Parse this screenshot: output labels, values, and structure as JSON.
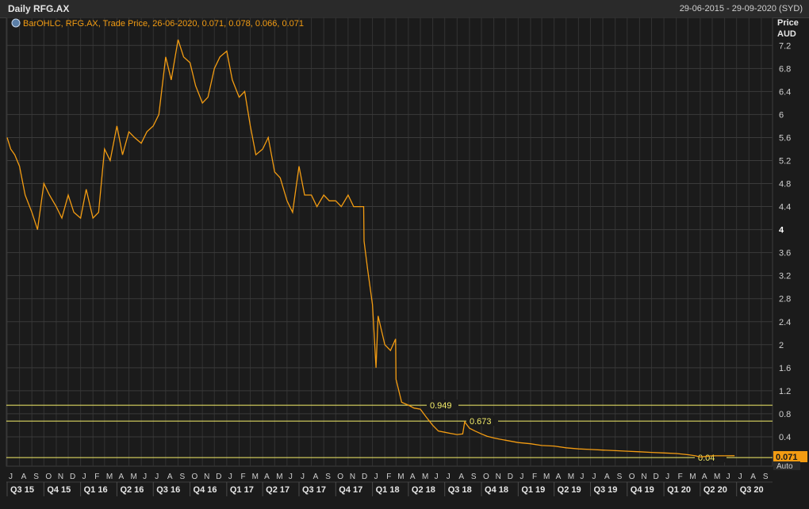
{
  "header": {
    "title": "Daily RFG.AX",
    "date_range": "29-06-2015 - 29-09-2020 (SYD)"
  },
  "legend": {
    "text": "BarOHLC, RFG.AX, Trade Price,  26-06-2020, 0.071, 0.078, 0.066, 0.071",
    "icon": "chart-settings-icon"
  },
  "axis": {
    "price_label": "Price",
    "currency_label": "AUD",
    "auto_label": "Auto",
    "last_price": "0.071"
  },
  "colors": {
    "series": "#f39c12",
    "level_lines": "#f5ee6a",
    "background": "#1b1b1b",
    "grid": "#3a3a3a",
    "last_price_badge": "#f39c12"
  },
  "chart_data": {
    "type": "line",
    "series": [
      {
        "name": "RFG.AX",
        "x_unit": "date",
        "y_unit": "AUD"
      }
    ],
    "x": [
      "2015-07-01",
      "2015-07-10",
      "2015-07-20",
      "2015-08-01",
      "2015-08-15",
      "2015-09-01",
      "2015-09-15",
      "2015-10-01",
      "2015-10-15",
      "2015-11-01",
      "2015-11-15",
      "2015-12-01",
      "2015-12-15",
      "2016-01-01",
      "2016-01-15",
      "2016-02-01",
      "2016-02-15",
      "2016-03-01",
      "2016-03-15",
      "2016-04-01",
      "2016-04-15",
      "2016-05-01",
      "2016-05-15",
      "2016-06-01",
      "2016-06-15",
      "2016-07-01",
      "2016-07-15",
      "2016-08-01",
      "2016-08-15",
      "2016-09-01",
      "2016-09-15",
      "2016-10-01",
      "2016-10-15",
      "2016-11-01",
      "2016-11-15",
      "2016-12-01",
      "2016-12-15",
      "2017-01-01",
      "2017-01-15",
      "2017-02-01",
      "2017-02-15",
      "2017-03-01",
      "2017-03-15",
      "2017-04-01",
      "2017-04-15",
      "2017-05-01",
      "2017-05-15",
      "2017-06-01",
      "2017-06-15",
      "2017-07-01",
      "2017-07-15",
      "2017-08-01",
      "2017-08-15",
      "2017-09-01",
      "2017-09-15",
      "2017-10-01",
      "2017-10-15",
      "2017-11-01",
      "2017-11-15",
      "2017-12-01",
      "2017-12-10",
      "2017-12-11",
      "2017-12-20",
      "2018-01-01",
      "2018-01-10",
      "2018-01-15",
      "2018-02-01",
      "2018-02-15",
      "2018-02-28",
      "2018-03-01",
      "2018-03-15",
      "2018-04-01",
      "2018-04-15",
      "2018-05-01",
      "2018-05-15",
      "2018-06-01",
      "2018-06-15",
      "2018-07-01",
      "2018-07-15",
      "2018-08-01",
      "2018-08-15",
      "2018-08-20",
      "2018-09-01",
      "2018-09-15",
      "2018-10-01",
      "2018-10-15",
      "2018-11-01",
      "2018-11-15",
      "2018-12-01",
      "2019-01-01",
      "2019-02-01",
      "2019-03-01",
      "2019-04-01",
      "2019-05-01",
      "2019-06-01",
      "2019-07-01",
      "2019-08-01",
      "2019-09-01",
      "2019-10-01",
      "2019-11-01",
      "2019-12-01",
      "2020-01-01",
      "2020-02-01",
      "2020-03-01",
      "2020-03-20",
      "2020-04-01",
      "2020-05-01",
      "2020-06-01",
      "2020-06-26"
    ],
    "values": [
      5.6,
      5.4,
      5.3,
      5.1,
      4.6,
      4.3,
      4.0,
      4.8,
      4.6,
      4.4,
      4.2,
      4.6,
      4.3,
      4.2,
      4.7,
      4.2,
      4.3,
      5.4,
      5.2,
      5.8,
      5.3,
      5.7,
      5.6,
      5.5,
      5.7,
      5.8,
      6.0,
      7.0,
      6.6,
      7.3,
      7.0,
      6.9,
      6.5,
      6.2,
      6.3,
      6.8,
      7.0,
      7.1,
      6.6,
      6.3,
      6.4,
      5.8,
      5.3,
      5.4,
      5.6,
      5.0,
      4.9,
      4.5,
      4.3,
      5.1,
      4.6,
      4.6,
      4.4,
      4.6,
      4.5,
      4.5,
      4.4,
      4.6,
      4.4,
      4.4,
      4.4,
      3.8,
      3.3,
      2.7,
      1.6,
      2.5,
      2.0,
      1.9,
      2.1,
      1.4,
      1.0,
      0.95,
      0.9,
      0.88,
      0.75,
      0.6,
      0.5,
      0.48,
      0.46,
      0.44,
      0.45,
      0.66,
      0.55,
      0.5,
      0.45,
      0.41,
      0.38,
      0.36,
      0.34,
      0.3,
      0.28,
      0.25,
      0.24,
      0.21,
      0.19,
      0.18,
      0.17,
      0.16,
      0.15,
      0.14,
      0.13,
      0.12,
      0.11,
      0.09,
      0.07,
      0.05,
      0.07,
      0.07,
      0.071
    ],
    "horizontal_levels": [
      {
        "label": "0.949",
        "value": 0.949
      },
      {
        "label": "0.673",
        "value": 0.673
      },
      {
        "label": "0.04",
        "value": 0.04
      }
    ],
    "y_ticks": [
      "7.2",
      "6.8",
      "6.4",
      "6",
      "5.6",
      "5.2",
      "4.8",
      "4.4",
      "4",
      "3.6",
      "3.2",
      "2.8",
      "2.4",
      "2",
      "1.6",
      "1.2",
      "0.8",
      "0.4"
    ],
    "y_tick_values": [
      7.2,
      6.8,
      6.4,
      6.0,
      5.6,
      5.2,
      4.8,
      4.4,
      4.0,
      3.6,
      3.2,
      2.8,
      2.4,
      2.0,
      1.6,
      1.2,
      0.8,
      0.4
    ],
    "ylim": [
      0,
      7.6
    ],
    "xlim": [
      "2015-06-29",
      "2020-09-29"
    ],
    "months": [
      "J",
      "A",
      "S",
      "O",
      "N",
      "D",
      "J",
      "F",
      "M",
      "A",
      "M",
      "J",
      "J",
      "A",
      "S",
      "O",
      "N",
      "D",
      "J",
      "F",
      "M",
      "A",
      "M",
      "J",
      "J",
      "A",
      "S",
      "O",
      "N",
      "D",
      "J",
      "F",
      "M",
      "A",
      "M",
      "J",
      "J",
      "A",
      "S",
      "O",
      "N",
      "D",
      "J",
      "F",
      "M",
      "A",
      "M",
      "J",
      "J",
      "A",
      "S",
      "O",
      "N",
      "D",
      "J",
      "F",
      "M",
      "A",
      "M",
      "J",
      "J",
      "A",
      "S"
    ],
    "quarters": [
      "Q3 15",
      "Q4 15",
      "Q1 16",
      "Q2 16",
      "Q3 16",
      "Q4 16",
      "Q1 17",
      "Q2 17",
      "Q3 17",
      "Q4 17",
      "Q1 18",
      "Q2 18",
      "Q3 18",
      "Q4 18",
      "Q1 19",
      "Q2 19",
      "Q3 19",
      "Q4 19",
      "Q1 20",
      "Q2 20",
      "Q3 20"
    ],
    "grid": true,
    "legend_position": "top-left"
  }
}
